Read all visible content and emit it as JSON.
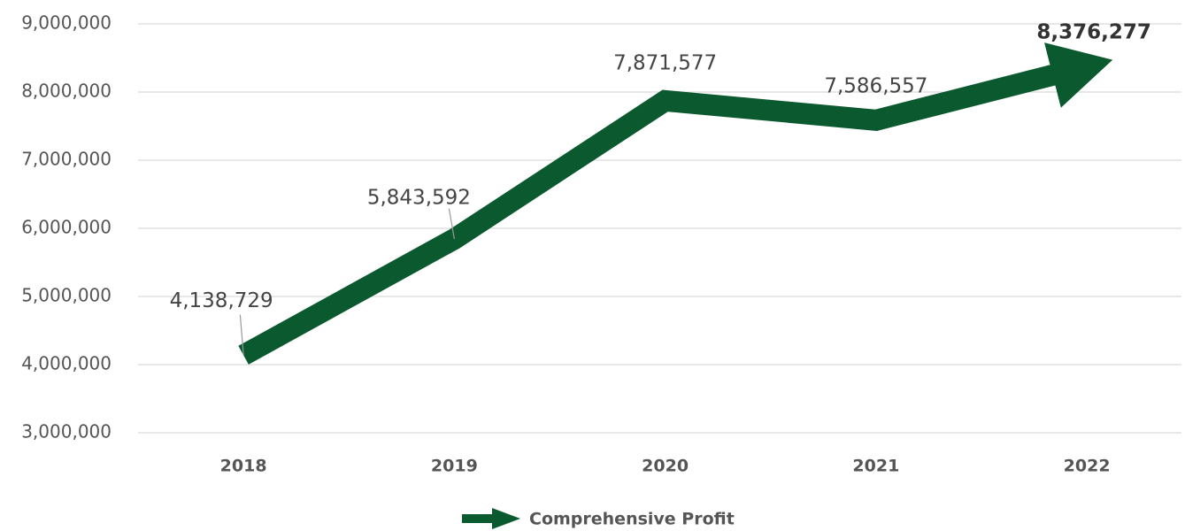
{
  "chart_data": {
    "type": "line",
    "categories": [
      "2018",
      "2019",
      "2020",
      "2021",
      "2022"
    ],
    "series": [
      {
        "name": "Comprehensive Profit",
        "color": "#0b5a2f",
        "values": [
          4138729,
          5843592,
          7871577,
          7586557,
          8376277
        ],
        "value_labels": [
          "4,138,729",
          "5,843,592",
          "7,871,577",
          "7,586,557",
          "8,376,277"
        ]
      }
    ],
    "ylim": [
      3000000,
      9000000
    ],
    "yticks": [
      {
        "value": 3000000,
        "label": "3,000,000"
      },
      {
        "value": 4000000,
        "label": "4,000,000"
      },
      {
        "value": 5000000,
        "label": "5,000,000"
      },
      {
        "value": 6000000,
        "label": "6,000,000"
      },
      {
        "value": 7000000,
        "label": "7,000,000"
      },
      {
        "value": 8000000,
        "label": "8,000,000"
      },
      {
        "value": 9000000,
        "label": "9,000,000"
      }
    ],
    "grid": true,
    "legend": "bottom"
  }
}
